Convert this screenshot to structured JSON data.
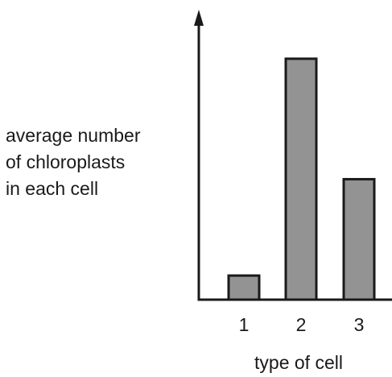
{
  "chart_data": {
    "type": "bar",
    "title": "",
    "xlabel": "type of cell",
    "ylabel_lines": [
      "average number",
      "of chloroplasts",
      "in each cell"
    ],
    "categories": [
      "1",
      "2",
      "3"
    ],
    "values": [
      1,
      10,
      5
    ],
    "y_tick_labels": "none",
    "ylim": [
      0,
      11.1
    ],
    "grid": false,
    "bar_fill": "#939393",
    "bar_stroke": "#1a1a1a",
    "axis_color": "#1a1a1a"
  }
}
